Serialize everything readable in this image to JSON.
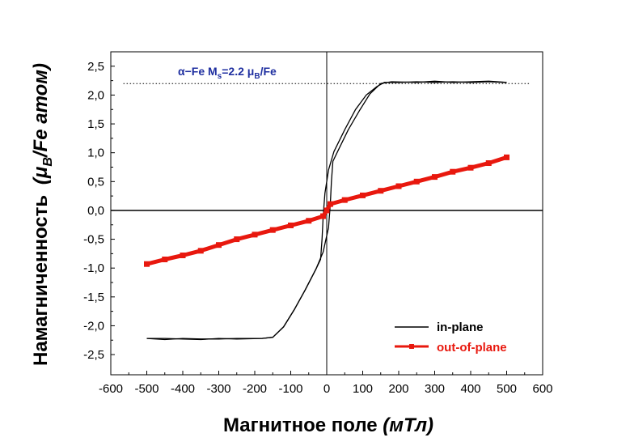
{
  "chart_data": {
    "type": "line",
    "title": "",
    "xlabel": "Магнитное поле",
    "xlabel_unit": "(мТл)",
    "ylabel_main": "Намагниченность",
    "ylabel_unit_open": "(",
    "ylabel_mu": "μ",
    "ylabel_sub": "B",
    "ylabel_unit_rest": "/Fe атом)",
    "xlim": [
      -600,
      600
    ],
    "ylim": [
      -2.85,
      2.75
    ],
    "x_ticks": [
      -600,
      -500,
      -400,
      -300,
      -200,
      -100,
      0,
      100,
      200,
      300,
      400,
      500,
      600
    ],
    "x_tick_labels": [
      "-600",
      "-500",
      "-400",
      "-300",
      "-200",
      "-100",
      "0",
      "100",
      "200",
      "300",
      "400",
      "500",
      "600"
    ],
    "y_ticks": [
      -2.5,
      -2.0,
      -1.5,
      -1.0,
      -0.5,
      0.0,
      0.5,
      1.0,
      1.5,
      2.0,
      2.5
    ],
    "y_tick_labels": [
      "-2,5",
      "-2,0",
      "-1,5",
      "-1,0",
      "-0,5",
      "0,0",
      "0,5",
      "1,0",
      "1,5",
      "2,0",
      "2,5"
    ],
    "grid": false,
    "legend_position": "bottom-right",
    "annotation": {
      "prefix": "α−Fe M",
      "sub1": "s",
      "middle": "=2.2 μ",
      "sub2": "B",
      "suffix": "/Fe",
      "reference_y": 2.2,
      "reference_x_range": [
        -565,
        565
      ],
      "color": "#1f2fa0"
    },
    "series": [
      {
        "name": "in-plane",
        "color": "#000000",
        "marker": "none",
        "branch_descending": [
          [
            500,
            2.22
          ],
          [
            450,
            2.23
          ],
          [
            400,
            2.22
          ],
          [
            350,
            2.23
          ],
          [
            300,
            2.22
          ],
          [
            250,
            2.23
          ],
          [
            200,
            2.22
          ],
          [
            160,
            2.22
          ],
          [
            140,
            2.15
          ],
          [
            110,
            2.0
          ],
          [
            80,
            1.75
          ],
          [
            50,
            1.4
          ],
          [
            20,
            1.02
          ],
          [
            5,
            0.7
          ],
          [
            -5,
            0.3
          ],
          [
            -10,
            -0.1
          ],
          [
            -13,
            -0.5
          ],
          [
            -17,
            -0.85
          ],
          [
            -30,
            -1.02
          ],
          [
            -60,
            -1.38
          ],
          [
            -90,
            -1.72
          ],
          [
            -120,
            -2.02
          ],
          [
            -150,
            -2.2
          ],
          [
            -180,
            -2.22
          ],
          [
            -250,
            -2.23
          ],
          [
            -300,
            -2.22
          ],
          [
            -350,
            -2.24
          ],
          [
            -400,
            -2.23
          ],
          [
            -450,
            -2.22
          ],
          [
            -500,
            -2.22
          ]
        ],
        "branch_ascending": [
          [
            -500,
            -2.22
          ],
          [
            -450,
            -2.24
          ],
          [
            -400,
            -2.22
          ],
          [
            -350,
            -2.23
          ],
          [
            -300,
            -2.23
          ],
          [
            -250,
            -2.22
          ],
          [
            -180,
            -2.22
          ],
          [
            -150,
            -2.2
          ],
          [
            -120,
            -2.02
          ],
          [
            -90,
            -1.72
          ],
          [
            -60,
            -1.38
          ],
          [
            -30,
            -1.02
          ],
          [
            -10,
            -0.72
          ],
          [
            5,
            -0.3
          ],
          [
            10,
            0.1
          ],
          [
            13,
            0.5
          ],
          [
            17,
            0.85
          ],
          [
            30,
            1.02
          ],
          [
            60,
            1.4
          ],
          [
            90,
            1.72
          ],
          [
            120,
            2.02
          ],
          [
            150,
            2.2
          ],
          [
            180,
            2.23
          ],
          [
            250,
            2.22
          ],
          [
            300,
            2.24
          ],
          [
            350,
            2.22
          ],
          [
            400,
            2.23
          ],
          [
            450,
            2.24
          ],
          [
            500,
            2.22
          ]
        ]
      },
      {
        "name": "out-of-plane",
        "color": "#e8180e",
        "marker": "square",
        "points": [
          [
            -500,
            -0.93
          ],
          [
            -450,
            -0.85
          ],
          [
            -400,
            -0.78
          ],
          [
            -350,
            -0.7
          ],
          [
            -300,
            -0.6
          ],
          [
            -250,
            -0.5
          ],
          [
            -200,
            -0.42
          ],
          [
            -150,
            -0.34
          ],
          [
            -100,
            -0.26
          ],
          [
            -50,
            -0.18
          ],
          [
            -10,
            -0.1
          ],
          [
            0,
            0.0
          ],
          [
            10,
            0.11
          ],
          [
            50,
            0.18
          ],
          [
            100,
            0.26
          ],
          [
            150,
            0.34
          ],
          [
            200,
            0.42
          ],
          [
            250,
            0.5
          ],
          [
            300,
            0.58
          ],
          [
            350,
            0.67
          ],
          [
            400,
            0.74
          ],
          [
            450,
            0.82
          ],
          [
            500,
            0.92
          ]
        ]
      }
    ]
  }
}
